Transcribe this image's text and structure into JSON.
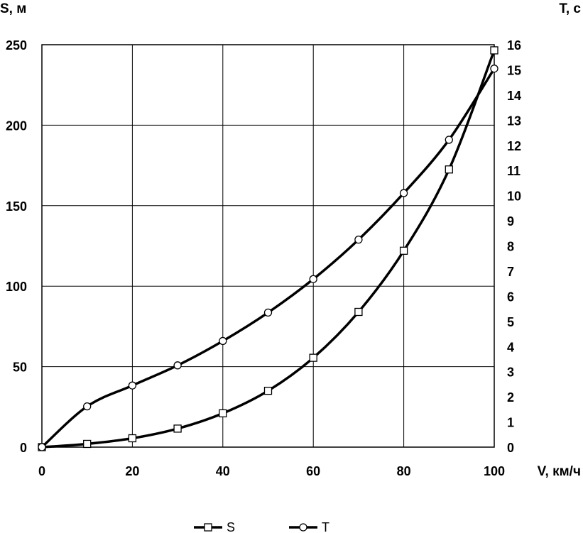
{
  "chart_data": {
    "type": "line",
    "title": "",
    "xlabel": "V, км/ч",
    "ylabel_left": "S, м",
    "ylabel_right": "T, с",
    "xlim": [
      0,
      100
    ],
    "ylim_left": [
      0,
      250
    ],
    "ylim_right": [
      0,
      16
    ],
    "x_ticks": [
      "0",
      "20",
      "40",
      "60",
      "80",
      "100"
    ],
    "y_left_ticks": [
      "0",
      "50",
      "100",
      "150",
      "200",
      "250"
    ],
    "y_right_ticks": [
      "0",
      "1",
      "2",
      "3",
      "4",
      "5",
      "6",
      "7",
      "8",
      "9",
      "10",
      "11",
      "12",
      "13",
      "14",
      "15",
      "16"
    ],
    "grid": true,
    "legend_position": "bottom",
    "series": [
      {
        "name": "S",
        "axis": "left",
        "marker": "square",
        "color": "#000000",
        "x": [
          0,
          10,
          20,
          30,
          40,
          50,
          60,
          70,
          80,
          90,
          100
        ],
        "values": [
          0,
          2,
          5.5,
          11.5,
          21,
          35,
          55.5,
          84,
          122,
          172.5,
          246.5
        ]
      },
      {
        "name": "T",
        "axis": "right",
        "marker": "circle",
        "color": "#000000",
        "x": [
          0,
          10,
          20,
          30,
          40,
          50,
          60,
          70,
          80,
          90,
          100
        ],
        "values": [
          0,
          1.62,
          2.45,
          3.25,
          4.22,
          5.35,
          6.68,
          8.25,
          10.1,
          12.22,
          15.05
        ]
      }
    ]
  }
}
